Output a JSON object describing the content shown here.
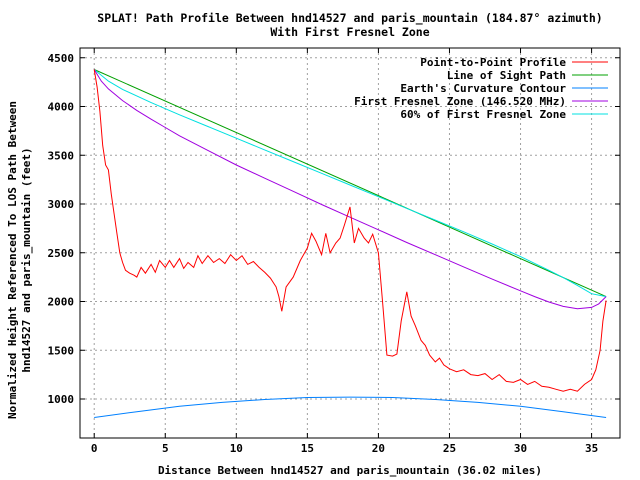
{
  "chart_data": {
    "type": "line",
    "title": "SPLAT! Path Profile Between hnd14527 and paris_mountain (184.87° azimuth)",
    "subtitle": "With First Fresnel Zone",
    "xlabel": "Distance Between hnd14527 and paris_mountain (36.02 miles)",
    "ylabel_line1": "Normalized Height Referenced To LOS Path Between",
    "ylabel_line2": "hnd14527 and paris_mountain (feet)",
    "xlim": [
      -1,
      37
    ],
    "ylim": [
      600,
      4600
    ],
    "x_ticks": [
      0,
      5,
      10,
      15,
      20,
      25,
      30,
      35
    ],
    "y_ticks": [
      1000,
      1500,
      2000,
      2500,
      3000,
      3500,
      4000,
      4500
    ],
    "grid": true,
    "legend_position": "top-right",
    "series": [
      {
        "name": "Point-to-Point Profile",
        "color": "#ff0000",
        "x": [
          0,
          0.2,
          0.4,
          0.6,
          0.8,
          1.0,
          1.2,
          1.4,
          1.6,
          1.8,
          2.0,
          2.2,
          2.5,
          2.8,
          3.0,
          3.3,
          3.6,
          4.0,
          4.3,
          4.6,
          5.0,
          5.3,
          5.6,
          6.0,
          6.3,
          6.6,
          7.0,
          7.3,
          7.6,
          8.0,
          8.4,
          8.8,
          9.2,
          9.6,
          10.0,
          10.4,
          10.8,
          11.2,
          11.6,
          12.0,
          12.4,
          12.8,
          13.0,
          13.2,
          13.5,
          14.0,
          14.5,
          15.0,
          15.3,
          15.6,
          16.0,
          16.3,
          16.6,
          17.0,
          17.3,
          17.6,
          18.0,
          18.3,
          18.6,
          19.0,
          19.3,
          19.6,
          20.0,
          20.3,
          20.6,
          21.0,
          21.3,
          21.6,
          22.0,
          22.3,
          22.6,
          23.0,
          23.3,
          23.6,
          24.0,
          24.3,
          24.6,
          25.0,
          25.5,
          26.0,
          26.5,
          27.0,
          27.5,
          28.0,
          28.5,
          29.0,
          29.5,
          30.0,
          30.5,
          31.0,
          31.5,
          32.0,
          32.5,
          33.0,
          33.5,
          34.0,
          34.5,
          35.0,
          35.3,
          35.6,
          35.8,
          36.02
        ],
        "y": [
          4380,
          4200,
          3950,
          3600,
          3400,
          3350,
          3100,
          2900,
          2700,
          2500,
          2400,
          2320,
          2290,
          2270,
          2250,
          2350,
          2290,
          2380,
          2300,
          2420,
          2350,
          2420,
          2350,
          2440,
          2340,
          2400,
          2350,
          2470,
          2390,
          2470,
          2400,
          2440,
          2390,
          2480,
          2420,
          2470,
          2380,
          2410,
          2350,
          2300,
          2240,
          2150,
          2050,
          1900,
          2150,
          2250,
          2420,
          2550,
          2700,
          2620,
          2480,
          2700,
          2500,
          2600,
          2650,
          2780,
          2970,
          2600,
          2750,
          2650,
          2600,
          2690,
          2500,
          1980,
          1450,
          1440,
          1460,
          1800,
          2100,
          1850,
          1750,
          1600,
          1550,
          1450,
          1380,
          1420,
          1350,
          1310,
          1280,
          1300,
          1250,
          1240,
          1260,
          1200,
          1250,
          1180,
          1170,
          1200,
          1150,
          1180,
          1130,
          1120,
          1100,
          1080,
          1100,
          1080,
          1150,
          1200,
          1300,
          1500,
          1800,
          2010
        ]
      },
      {
        "name": "Line of Sight Path",
        "color": "#00a000",
        "x": [
          0,
          36.02
        ],
        "y": [
          4380,
          2050
        ]
      },
      {
        "name": "Earth's Curvature Contour",
        "color": "#0080ff",
        "x": [
          0,
          3,
          6,
          9,
          12,
          15,
          18,
          21,
          24,
          27,
          30,
          33,
          36.02
        ],
        "y": [
          810,
          870,
          925,
          965,
          995,
          1015,
          1020,
          1015,
          995,
          965,
          925,
          870,
          810
        ]
      },
      {
        "name": "First Fresnel Zone (146.520 MHz)",
        "color": "#a000e0",
        "x": [
          0,
          0.5,
          1,
          2,
          3,
          4,
          5,
          6,
          8,
          10,
          12,
          14,
          16,
          18,
          20,
          22,
          24,
          26,
          28,
          30,
          31,
          32,
          33,
          34,
          35,
          35.5,
          36.02
        ],
        "y": [
          4380,
          4260,
          4180,
          4060,
          3960,
          3870,
          3785,
          3700,
          3550,
          3400,
          3265,
          3130,
          2995,
          2865,
          2735,
          2605,
          2480,
          2355,
          2230,
          2110,
          2050,
          1995,
          1950,
          1925,
          1940,
          1975,
          2050
        ]
      },
      {
        "name": "60% of First Fresnel Zone",
        "color": "#00e0e0",
        "x": [
          0,
          1,
          2,
          4,
          6,
          8,
          10,
          12,
          14,
          16,
          18,
          20,
          22,
          24,
          26,
          28,
          30,
          32,
          33,
          34,
          35,
          36.02
        ],
        "y": [
          4380,
          4260,
          4175,
          4040,
          3915,
          3795,
          3675,
          3555,
          3435,
          3315,
          3195,
          3075,
          2955,
          2835,
          2715,
          2590,
          2460,
          2320,
          2245,
          2165,
          2080,
          2050
        ]
      }
    ]
  }
}
